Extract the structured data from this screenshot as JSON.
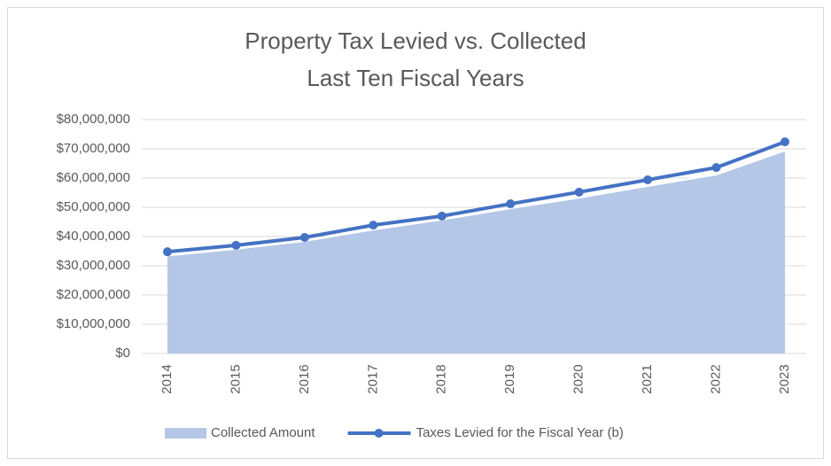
{
  "chart_data": {
    "type": "line",
    "title": [
      "Property Tax Levied vs. Collected",
      "Last Ten Fiscal Years"
    ],
    "categories": [
      "2014",
      "2015",
      "2016",
      "2017",
      "2018",
      "2019",
      "2020",
      "2021",
      "2022",
      "2023"
    ],
    "series": [
      {
        "name": "Collected Amount",
        "type": "area",
        "color": "#b4c7e7",
        "values": [
          33500000,
          35800000,
          38500000,
          42400000,
          45800000,
          49700000,
          53300000,
          57300000,
          61200000,
          69400000
        ]
      },
      {
        "name": "Taxes Levied for the Fiscal Year (b)",
        "type": "line",
        "color": "#4472c4",
        "values": [
          34800000,
          37000000,
          39700000,
          43900000,
          47000000,
          51200000,
          55200000,
          59400000,
          63600000,
          72400000
        ]
      }
    ],
    "ylim": [
      0,
      80000000
    ],
    "yticks": [
      {
        "value": 0,
        "label": "$0"
      },
      {
        "value": 10000000,
        "label": "$10,000,000"
      },
      {
        "value": 20000000,
        "label": "$20,000,000"
      },
      {
        "value": 30000000,
        "label": "$30,000,000"
      },
      {
        "value": 40000000,
        "label": "$40,000,000"
      },
      {
        "value": 50000000,
        "label": "$50,000,000"
      },
      {
        "value": 60000000,
        "label": "$60,000,000"
      },
      {
        "value": 70000000,
        "label": "$70,000,000"
      },
      {
        "value": 80000000,
        "label": "$80,000,000"
      }
    ],
    "grid": true,
    "legend": "bottom"
  }
}
